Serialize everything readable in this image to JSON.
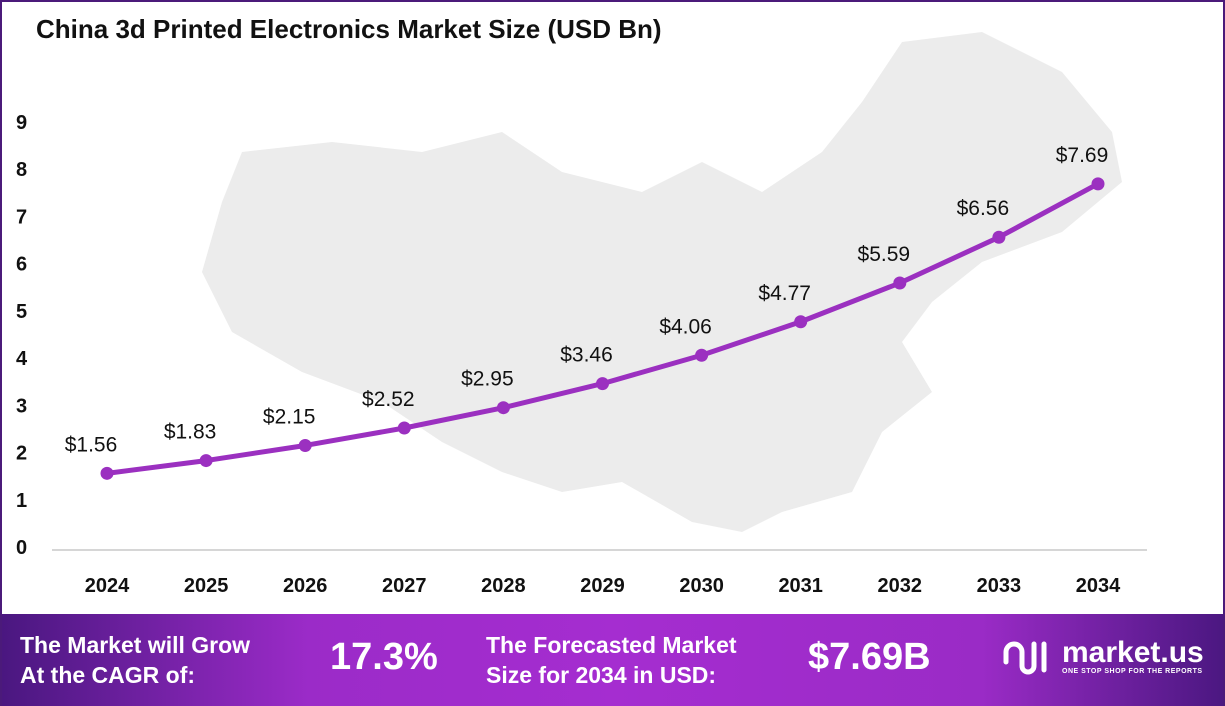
{
  "chart_data": {
    "type": "line",
    "title": "China 3d Printed Electronics Market Size (USD Bn)",
    "categories": [
      "2024",
      "2025",
      "2026",
      "2027",
      "2028",
      "2029",
      "2030",
      "2031",
      "2032",
      "2033",
      "2034"
    ],
    "values": [
      1.56,
      1.83,
      2.15,
      2.52,
      2.95,
      3.46,
      4.06,
      4.77,
      5.59,
      6.56,
      7.69
    ],
    "data_labels": [
      "$1.56",
      "$1.83",
      "$2.15",
      "$2.52",
      "$2.95",
      "$3.46",
      "$4.06",
      "$4.77",
      "$5.59",
      "$6.56",
      "$7.69"
    ],
    "yticks": [
      "0",
      "1",
      "2",
      "3",
      "4",
      "5",
      "6",
      "7",
      "8",
      "9"
    ],
    "ylim": [
      0,
      9
    ],
    "grid": false,
    "line_color": "#9b30c0"
  },
  "footer": {
    "cagr_label": [
      "The Market will Grow",
      "At the CAGR of:"
    ],
    "cagr_value": "17.3%",
    "forecast_label": [
      "The Forecasted Market",
      "Size for 2034 in USD:"
    ],
    "forecast_value": "$7.69B",
    "logo_text": "market.us",
    "logo_tagline": "ONE STOP SHOP FOR THE REPORTS"
  }
}
